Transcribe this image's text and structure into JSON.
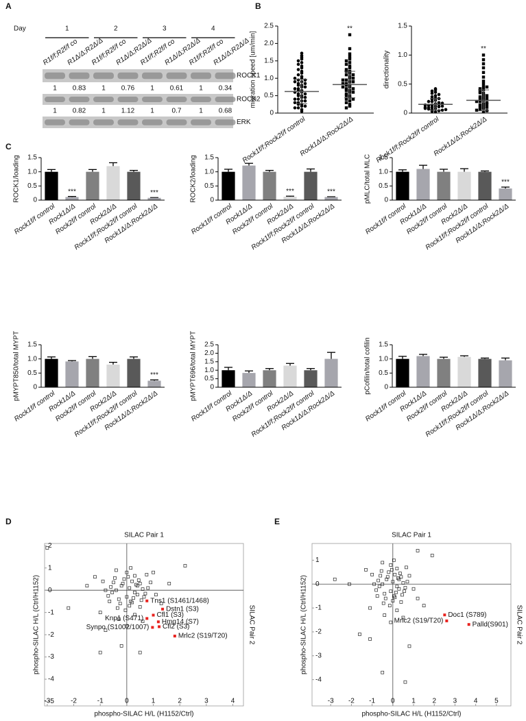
{
  "panel_labels": [
    "A",
    "B",
    "C",
    "D",
    "E"
  ],
  "blot": {
    "day_label": "Day",
    "days": [
      "1",
      "2",
      "3",
      "4"
    ],
    "lanes": [
      "R1f/f;R2f/f co",
      "R1Δ/Δ;R2Δ/Δ",
      "R1f/f;R2f/f co",
      "R1Δ/Δ;R2Δ/Δ",
      "R1f/f;R2f/f co",
      "R1Δ/Δ;R2Δ/Δ",
      "R1f/f;R2f/f co",
      "R1Δ/Δ;R2Δ/Δ"
    ],
    "bands": [
      "ROCK1",
      "ROCK2",
      "ERK"
    ],
    "rock1_quant": [
      1,
      0.83,
      1,
      0.76,
      1,
      0.61,
      1,
      0.34
    ],
    "rock2_quant": [
      1,
      0.82,
      1,
      1.12,
      1,
      0.7,
      1,
      0.68
    ]
  },
  "chart_data": [
    {
      "type": "dotplot",
      "ylabel": "migration speed [um/min]",
      "categories": [
        "Rock1f/f;Rock2f/f control",
        "Rock1Δ/Δ;Rock2Δ/Δ"
      ],
      "markers": [
        "circle",
        "square"
      ],
      "values": [
        [
          1.72,
          1.65,
          1.6,
          1.55,
          1.5,
          1.45,
          1.4,
          1.35,
          1.3,
          1.25,
          1.2,
          1.15,
          1.1,
          1.05,
          1.0,
          0.95,
          0.9,
          0.85,
          0.8,
          0.75,
          0.7,
          0.65,
          0.6,
          0.55,
          0.5,
          0.45,
          0.4,
          0.35,
          0.3,
          0.25,
          0.2,
          0.15,
          0.1,
          0.05,
          0.95,
          0.85,
          0.75,
          0.65,
          0.55,
          0.45,
          0.35,
          0.25,
          0.6,
          0.5,
          0.7,
          0.4,
          0.8,
          0.3,
          0.9,
          0.2,
          1.0,
          0.15
        ],
        [
          2.25,
          1.85,
          1.7,
          1.62,
          1.55,
          1.5,
          1.45,
          1.4,
          1.35,
          1.3,
          1.25,
          1.2,
          1.15,
          1.1,
          1.05,
          1.0,
          0.95,
          0.9,
          0.85,
          0.8,
          0.75,
          0.7,
          0.65,
          0.6,
          0.55,
          0.5,
          0.45,
          0.4,
          0.35,
          0.3,
          0.25,
          0.2,
          0.15,
          1.0,
          0.9,
          0.8,
          0.7,
          0.6,
          1.1,
          0.95,
          0.85,
          0.75,
          0.65,
          0.5,
          1.2,
          0.4
        ]
      ],
      "means": [
        0.62,
        0.82
      ],
      "sd": [
        0.35,
        0.38
      ],
      "significance": [
        null,
        "**"
      ],
      "ylim": [
        0,
        2.5
      ],
      "yticks": [
        0,
        0.5,
        {
          "value": 1,
          "label": "1.0"
        },
        1.5,
        {
          "value": 2,
          "label": "2.0"
        },
        2.5
      ]
    },
    {
      "type": "dotplot",
      "ylabel": "directionality",
      "categories": [
        "Rock1f/f;Rock2f/f control",
        "Rock1Δ/Δ;Rock2Δ/Δ"
      ],
      "markers": [
        "circle",
        "square"
      ],
      "values": [
        [
          0.42,
          0.4,
          0.38,
          0.36,
          0.34,
          0.32,
          0.3,
          0.28,
          0.26,
          0.24,
          0.22,
          0.2,
          0.18,
          0.16,
          0.14,
          0.12,
          0.1,
          0.08,
          0.06,
          0.04,
          0.02,
          0.15,
          0.13,
          0.11,
          0.09,
          0.07,
          0.05,
          0.03,
          0.12,
          0.1,
          0.08,
          0.06,
          0.2,
          0.17,
          0.14,
          0.25
        ],
        [
          1.0,
          0.92,
          0.85,
          0.78,
          0.7,
          0.62,
          0.55,
          0.5,
          0.45,
          0.42,
          0.4,
          0.37,
          0.34,
          0.31,
          0.28,
          0.26,
          0.24,
          0.22,
          0.2,
          0.18,
          0.16,
          0.14,
          0.12,
          0.1,
          0.08,
          0.06,
          0.04,
          0.02,
          0.3,
          0.25,
          0.2,
          0.15,
          0.1,
          0.05,
          0.35,
          0.45
        ]
      ],
      "means": [
        0.15,
        0.22
      ],
      "sd": [
        0.1,
        0.18
      ],
      "significance": [
        null,
        "**"
      ],
      "ylim": [
        0,
        1.5
      ],
      "yticks": [
        0,
        0.5,
        {
          "value": 1,
          "label": "1.0"
        },
        1.5
      ]
    },
    {
      "type": "bar",
      "ylabel": "ROCK1/loading",
      "categories": [
        "Rock1f/f control",
        "Rock1Δ/Δ",
        "Rock2f/f control",
        "Rock2Δ/Δ",
        "Rock1f/f;Rock2f/f control",
        "Rock1Δ/Δ;Rock2Δ/Δ"
      ],
      "colors": [
        "#000000",
        "#a6a6ad",
        "#808080",
        "#d9d9d9",
        "#595959",
        "#a6a6ad"
      ],
      "values": [
        1,
        0.11,
        1,
        1.2,
        1,
        0.08
      ],
      "errors": [
        0.08,
        0.02,
        0.08,
        0.12,
        0.05,
        0.01
      ],
      "significance": [
        null,
        "***",
        null,
        null,
        null,
        "***"
      ],
      "ylim": [
        0,
        1.5
      ],
      "yticks": [
        0,
        0.5,
        {
          "value": 1,
          "label": "1.0"
        },
        1.5
      ]
    },
    {
      "type": "bar",
      "ylabel": "ROCK2/loading",
      "categories": [
        "Rock1f/f control",
        "Rock1Δ/Δ",
        "Rock2f/f control",
        "Rock2Δ/Δ",
        "Rock1f/f;Rock2f/f control",
        "Rock1Δ/Δ;Rock2Δ/Δ"
      ],
      "colors": [
        "#000000",
        "#a6a6ad",
        "#808080",
        "#d9d9d9",
        "#595959",
        "#a6a6ad"
      ],
      "values": [
        1,
        1.22,
        1,
        0.12,
        1,
        0.11
      ],
      "errors": [
        0.09,
        0.08,
        0.05,
        0.02,
        0.1,
        0.01
      ],
      "significance": [
        null,
        null,
        null,
        "***",
        null,
        "***"
      ],
      "ylim": [
        0,
        1.5
      ],
      "yticks": [
        0,
        0.5,
        {
          "value": 1,
          "label": "1.0"
        },
        1.5
      ]
    },
    {
      "type": "bar",
      "ylabel": "pMLC/total MLC",
      "categories": [
        "Rock1f/f control",
        "Rock1Δ/Δ",
        "Rock2f/f control",
        "Rock2Δ/Δ",
        "Rock1f/f;Rock2f/f control",
        "Rock1Δ/Δ;Rock2Δ/Δ"
      ],
      "colors": [
        "#000000",
        "#a6a6ad",
        "#808080",
        "#d9d9d9",
        "#595959",
        "#a6a6ad"
      ],
      "values": [
        1,
        1.1,
        1,
        1,
        1,
        0.41
      ],
      "errors": [
        0.07,
        0.13,
        0.09,
        0.11,
        0.03,
        0.05
      ],
      "significance": [
        null,
        null,
        null,
        null,
        null,
        "***"
      ],
      "ylim": [
        0,
        1.5
      ],
      "yticks": [
        0,
        0.5,
        {
          "value": 1,
          "label": "1.0"
        },
        1.5
      ]
    },
    {
      "type": "bar",
      "ylabel": "pMYPT850/total MYPT",
      "categories": [
        "Rock1f/f control",
        "Rock1Δ/Δ",
        "Rock2f/f control",
        "Rock2Δ/Δ",
        "Rock1f/f;Rock2f/f control",
        "Rock1Δ/Δ;Rock2Δ/Δ"
      ],
      "colors": [
        "#000000",
        "#a6a6ad",
        "#808080",
        "#d9d9d9",
        "#595959",
        "#a6a6ad"
      ],
      "values": [
        1,
        0.91,
        1,
        0.8,
        1,
        0.23
      ],
      "errors": [
        0.07,
        0.03,
        0.08,
        0.08,
        0.07,
        0.03
      ],
      "significance": [
        null,
        null,
        null,
        null,
        null,
        "***"
      ],
      "ylim": [
        0,
        1.5
      ],
      "yticks": [
        0,
        0.5,
        {
          "value": 1,
          "label": "1.0"
        },
        1.5
      ]
    },
    {
      "type": "bar",
      "ylabel": "pMYPT696/total MYPT",
      "categories": [
        "Rock1f/f control",
        "Rock1Δ/Δ",
        "Rock2f/f control",
        "Rock2Δ/Δ",
        "Rock1f/f;Rock2f/f control",
        "Rock1Δ/Δ;Rock2Δ/Δ"
      ],
      "colors": [
        "#000000",
        "#a6a6ad",
        "#808080",
        "#d9d9d9",
        "#595959",
        "#a6a6ad"
      ],
      "values": [
        1,
        0.84,
        1,
        1.27,
        1,
        1.67
      ],
      "errors": [
        0.17,
        0.12,
        0.1,
        0.13,
        0.1,
        0.38
      ],
      "significance": [
        null,
        null,
        null,
        null,
        null,
        null
      ],
      "ylim": [
        0,
        2.5
      ],
      "yticks": [
        0,
        0.5,
        {
          "value": 1,
          "label": "1.0"
        },
        1.5,
        {
          "value": 2,
          "label": "2.0"
        },
        2.5
      ]
    },
    {
      "type": "bar",
      "ylabel": "pCofilin/total cofilin",
      "categories": [
        "Rock1f/f control",
        "Rock1Δ/Δ",
        "Rock2f/f control",
        "Rock2Δ/Δ",
        "Rock1f/f;Rock2f/f control",
        "Rock1Δ/Δ;Rock2Δ/Δ"
      ],
      "colors": [
        "#000000",
        "#a6a6ad",
        "#808080",
        "#d9d9d9",
        "#595959",
        "#a6a6ad"
      ],
      "values": [
        1,
        1.1,
        1,
        1.07,
        1,
        0.95
      ],
      "errors": [
        0.09,
        0.06,
        0.06,
        0.04,
        0.03,
        0.08
      ],
      "significance": [
        null,
        null,
        null,
        null,
        null,
        null
      ],
      "ylim": [
        0,
        1.5
      ],
      "yticks": [
        0,
        0.5,
        {
          "value": 1,
          "label": "1.0"
        },
        1.5
      ]
    },
    {
      "type": "scatter",
      "title": "SILAC Pair 1",
      "y2label": "SILAC Pair 2",
      "xlabel": "phospho-SILAC H/L (H1152/Ctrl)",
      "ylabel": "phospho-SILAC H/L (Ctrl/H1152)",
      "xlim": [
        -3.1,
        4.4
      ],
      "ylim": [
        -5.2,
        2.1
      ],
      "xticks": [
        -3,
        -2,
        -1,
        0,
        1,
        2,
        3,
        4
      ],
      "yticks": [
        -5,
        -4,
        -3,
        -2,
        -1,
        0,
        1,
        2
      ],
      "x": [
        0.1,
        -0.2,
        0.3,
        -0.4,
        0.5,
        0.0,
        -0.6,
        0.2,
        0.4,
        -0.3,
        0.6,
        -0.1,
        0.15,
        -0.5,
        0.35,
        0.7,
        -0.7,
        0.05,
        -0.25,
        0.45,
        0.25,
        -0.45,
        0.55,
        -0.15,
        0.8,
        -0.8,
        0.1,
        0.3,
        -0.35,
        0.65,
        0.0,
        -0.55,
        0.4,
        0.2,
        -0.05,
        0.9,
        -0.9,
        0.5,
        -0.65,
        0.15,
        1.1,
        -1.2,
        0.3,
        -0.3,
        0.75,
        -1.0,
        1.3,
        0.6,
        -0.4,
        0.0,
        -3.0,
        2.2,
        -2.2,
        -1.0,
        -0.2,
        0.5,
        1.6,
        -1.5,
        1.0,
        -0.8
      ],
      "y": [
        0.1,
        0.2,
        -0.1,
        0.0,
        0.3,
        -0.3,
        0.15,
        0.4,
        -0.2,
        -0.4,
        0.05,
        0.5,
        -0.5,
        0.35,
        0.25,
        -0.15,
        -0.25,
        0.6,
        -0.6,
        0.45,
        -0.35,
        0.55,
        -0.45,
        0.3,
        0.1,
        0.0,
        -0.7,
        0.65,
        -0.8,
        -0.3,
        0.8,
        -0.1,
        0.2,
        -0.55,
        -0.9,
        0.35,
        0.4,
        -0.75,
        -0.5,
        1.0,
        -0.2,
        0.6,
        -1.1,
        -1.3,
        0.7,
        -1.0,
        -0.6,
        -1.4,
        0.9,
        -1.6,
        1.9,
        1.1,
        -0.8,
        -2.8,
        -2.5,
        -2.8,
        0.3,
        0.2,
        0.8,
        -1.8
      ],
      "highlight": {
        "color": "#e8231f",
        "labels": [
          "Tns1 (S1461/1468)",
          "Dstn1 (S3)",
          "Cfl1 (S3)",
          "Hmg14 (S7)",
          "Knp1 (S471)",
          "Cfl2 (S3)",
          "Mrlc2 (S19/T20)",
          "Synpo (S1002/1007)"
        ],
        "x": [
          0.76,
          1.35,
          1.0,
          1.19,
          0.76,
          1.22,
          1.81,
          0.97
        ],
        "y": [
          -0.48,
          -0.85,
          -1.12,
          -1.42,
          -1.27,
          -1.64,
          -2.06,
          -1.67
        ]
      }
    },
    {
      "type": "scatter",
      "title": "SILAC Pair 1",
      "y2label": "SILAC Pair 2",
      "xlabel": "phospho-SILAC H/L (H1152/Ctrl)",
      "ylabel": "phospho-SILAC H/L (Ctrl/H1152)",
      "xlim": [
        -3.9,
        5.7
      ],
      "ylim": [
        -5.1,
        1.7
      ],
      "xticks": [
        -3,
        -2,
        -1,
        0,
        1,
        2,
        3,
        4,
        5
      ],
      "yticks": [
        -4,
        -3,
        -2,
        -1,
        0,
        1
      ],
      "x": [
        0.0,
        -0.3,
        0.2,
        -0.5,
        0.4,
        -0.1,
        -0.7,
        0.1,
        0.3,
        -0.4,
        0.5,
        -0.2,
        0.05,
        -0.6,
        0.25,
        0.6,
        -0.8,
        -0.05,
        -0.35,
        0.35,
        0.15,
        -0.55,
        0.45,
        -0.25,
        0.7,
        -0.9,
        0.0,
        0.2,
        -0.45,
        0.55,
        -0.1,
        -0.65,
        0.3,
        0.1,
        -0.15,
        0.8,
        -1.0,
        0.4,
        -0.75,
        0.05,
        1.0,
        -1.3,
        0.2,
        -0.4,
        0.65,
        -1.1,
        1.2,
        0.5,
        -0.5,
        -0.1,
        -2.8,
        -2.1,
        1.9,
        1.2,
        -0.5,
        0.6,
        -1.1,
        -1.6,
        1.5,
        0.8
      ],
      "y": [
        0.1,
        0.2,
        -0.1,
        0.0,
        0.3,
        -0.3,
        0.15,
        0.4,
        -0.2,
        -0.4,
        0.05,
        0.5,
        -0.5,
        0.35,
        0.25,
        -0.15,
        -0.25,
        0.6,
        -0.6,
        0.45,
        -0.35,
        0.55,
        -0.45,
        0.3,
        0.1,
        0.0,
        -0.7,
        0.65,
        -0.8,
        -0.3,
        0.8,
        -0.1,
        0.2,
        -0.55,
        -0.9,
        0.35,
        0.4,
        -0.75,
        -0.5,
        1.0,
        -0.2,
        0.6,
        -1.1,
        -1.3,
        0.7,
        -1.0,
        -0.6,
        -1.4,
        0.9,
        -1.6,
        0.2,
        0.0,
        1.2,
        1.4,
        -3.7,
        -4.1,
        -2.3,
        -2.1,
        -0.9,
        -2.6
      ],
      "highlight": {
        "color": "#e8231f",
        "labels": [
          "Doc1 (S789)",
          "Mrlc2 (S19/T20)",
          "Palld(S901)"
        ],
        "x": [
          2.5,
          2.6,
          3.67
        ],
        "y": [
          -1.29,
          -1.54,
          -1.69
        ]
      }
    }
  ]
}
